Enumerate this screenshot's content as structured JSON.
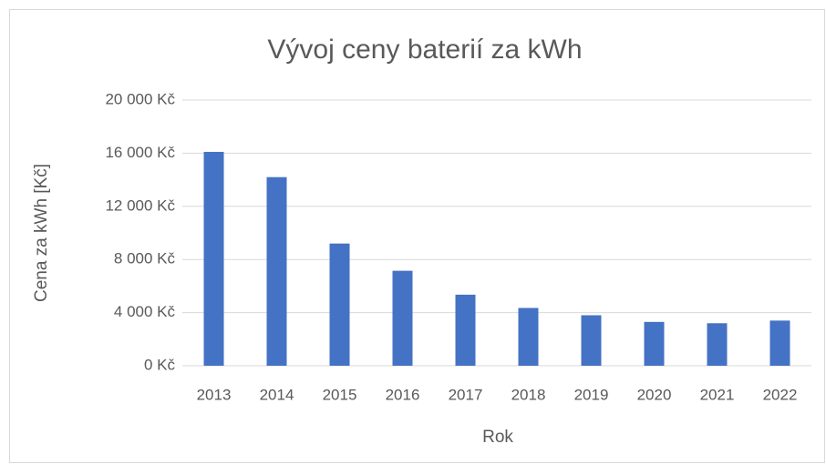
{
  "chart_data": {
    "type": "bar",
    "title": "Vývoj ceny baterií za kWh",
    "x_label": "Rok",
    "y_label": "Cena za kWh [Kč]",
    "categories": [
      "2013",
      "2014",
      "2015",
      "2016",
      "2017",
      "2018",
      "2019",
      "2020",
      "2021",
      "2022"
    ],
    "values": [
      16100,
      14200,
      9200,
      7150,
      5350,
      4350,
      3800,
      3300,
      3200,
      3400
    ],
    "color": "#4472c4",
    "ylim": [
      0,
      20000
    ],
    "yticks": [
      {
        "value": 0,
        "label": "0 Kč"
      },
      {
        "value": 4000,
        "label": "4 000 Kč"
      },
      {
        "value": 8000,
        "label": "8 000 Kč"
      },
      {
        "value": 12000,
        "label": "12 000 Kč"
      },
      {
        "value": 16000,
        "label": "16 000 Kč"
      },
      {
        "value": 20000,
        "label": "20 000 Kč"
      }
    ],
    "grid": true
  }
}
